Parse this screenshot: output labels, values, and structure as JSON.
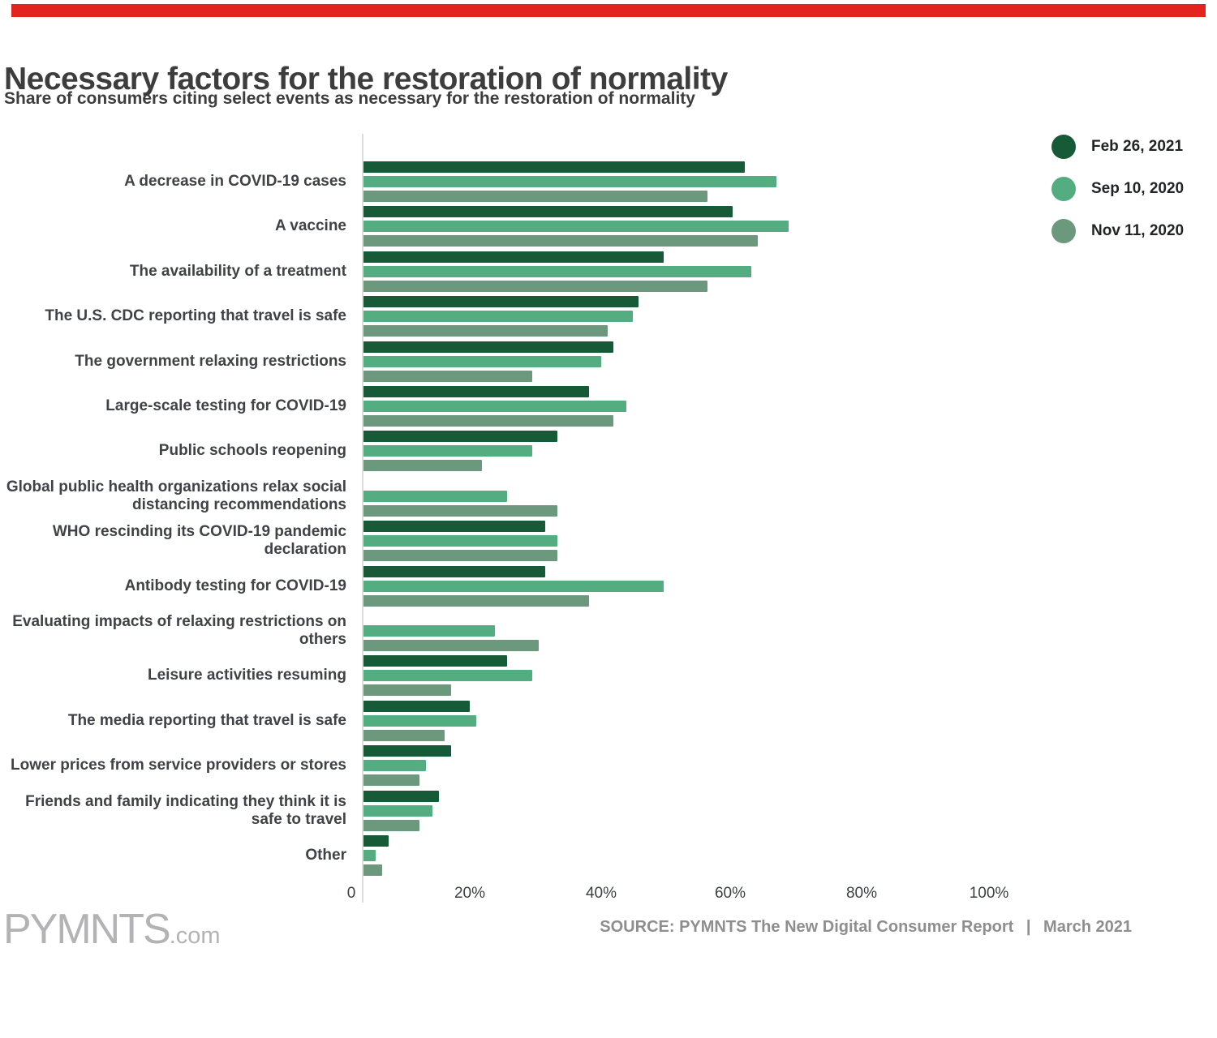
{
  "brand": {
    "top_bar_color": "#e3231e",
    "logo_main": "PYMNTS",
    "logo_suffix": ".com"
  },
  "footer": {
    "source": "SOURCE: PYMNTS The New Digital Consumer Report  |  March 2021"
  },
  "chart_data": {
    "type": "bar",
    "orientation": "horizontal",
    "title": "Necessary factors for the restoration of normality",
    "subtitle": "Share of consumers citing select events as necessary for the restoration of normality",
    "legend_position": "top-right",
    "grid": false,
    "x_axis": {
      "range": [
        0,
        100
      ],
      "tick_labels": [
        "0",
        "20%",
        "40%",
        "60%",
        "80%",
        "100%"
      ],
      "tick_values": [
        0,
        20,
        40,
        60,
        80,
        100
      ]
    },
    "categories": [
      "A decrease in COVID-19 cases",
      "A vaccine",
      "The availability of a treatment",
      "The U.S. CDC reporting that travel is safe",
      "The government relaxing restrictions",
      "Large-scale testing for COVID-19",
      "Public schools reopening",
      "Global public health organizations relax social distancing recommendations",
      "WHO rescinding its COVID-19 pandemic declaration",
      "Antibody testing for COVID-19",
      "Evaluating impacts of relaxing restrictions on others",
      "Leisure activities resuming",
      "The media reporting that travel is safe",
      "Lower prices from service providers or stores",
      "Friends and family indicating they think it is safe to travel",
      "Other"
    ],
    "series": [
      {
        "name": "Feb 26, 2021",
        "color": "#175a37",
        "values": [
          61,
          59,
          48,
          44,
          40,
          36,
          31,
          null,
          29,
          29,
          null,
          23,
          17,
          14,
          12,
          4
        ]
      },
      {
        "name": "Sep 10, 2020",
        "color": "#53ad80",
        "values": [
          66,
          68,
          62,
          43,
          38,
          42,
          27,
          23,
          31,
          48,
          21,
          27,
          18,
          10,
          11,
          2
        ]
      },
      {
        "name": "Nov 11, 2020",
        "color": "#6c997e",
        "values": [
          55,
          63,
          55,
          39,
          27,
          40,
          19,
          31,
          31,
          36,
          28,
          14,
          13,
          9,
          9,
          3
        ]
      }
    ]
  }
}
